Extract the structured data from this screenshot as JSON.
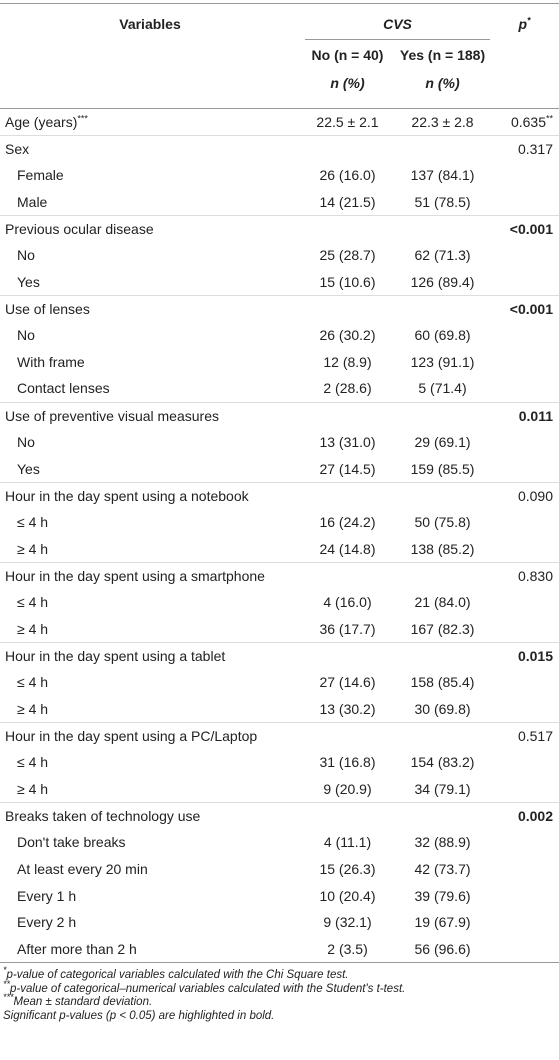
{
  "table": {
    "header": {
      "variables": "Variables",
      "group": "CVS",
      "p": "p",
      "p_note": "*",
      "no": "No (n = 40)",
      "yes": "Yes (n = 188)",
      "no_unit": "n (%)",
      "yes_unit": "n (%)"
    },
    "groups": [
      {
        "label": "Age (years)",
        "label_note": "***",
        "no": "22.5 ± 2.1",
        "yes": "22.3 ± 2.8",
        "p": "0.635",
        "p_note": "**",
        "significant": false,
        "rows": []
      },
      {
        "label": "Sex",
        "p": "0.317",
        "significant": false,
        "rows": [
          {
            "label": "Female",
            "no": "26 (16.0)",
            "yes": "137 (84.1)"
          },
          {
            "label": "Male",
            "no": "14 (21.5)",
            "yes": "51 (78.5)"
          }
        ]
      },
      {
        "label": "Previous ocular disease",
        "p": "<0.001",
        "significant": true,
        "rows": [
          {
            "label": "No",
            "no": "25 (28.7)",
            "yes": "62 (71.3)"
          },
          {
            "label": "Yes",
            "no": "15 (10.6)",
            "yes": "126 (89.4)"
          }
        ]
      },
      {
        "label": "Use of lenses",
        "p": "<0.001",
        "significant": true,
        "rows": [
          {
            "label": "No",
            "no": "26 (30.2)",
            "yes": "60 (69.8)"
          },
          {
            "label": "With frame",
            "no": "12 (8.9)",
            "yes": "123 (91.1)"
          },
          {
            "label": "Contact lenses",
            "no": "2 (28.6)",
            "yes": "5 (71.4)"
          }
        ]
      },
      {
        "label": "Use of preventive visual measures",
        "p": "0.011",
        "significant": true,
        "rows": [
          {
            "label": "No",
            "no": "13 (31.0)",
            "yes": "29 (69.1)"
          },
          {
            "label": "Yes",
            "no": "27 (14.5)",
            "yes": "159 (85.5)"
          }
        ]
      },
      {
        "label": "Hour in the day spent using a notebook",
        "p": "0.090",
        "significant": false,
        "rows": [
          {
            "label": "≤ 4 h",
            "no": "16 (24.2)",
            "yes": "50 (75.8)"
          },
          {
            "label": "≥ 4 h",
            "no": "24 (14.8)",
            "yes": "138 (85.2)"
          }
        ]
      },
      {
        "label": "Hour in the day spent using a smartphone",
        "p": "0.830",
        "significant": false,
        "rows": [
          {
            "label": "≤ 4 h",
            "no": "4 (16.0)",
            "yes": "21 (84.0)"
          },
          {
            "label": "≥ 4 h",
            "no": "36 (17.7)",
            "yes": "167 (82.3)"
          }
        ]
      },
      {
        "label": "Hour in the day spent using a tablet",
        "p": "0.015",
        "significant": true,
        "rows": [
          {
            "label": "≤ 4 h",
            "no": "27 (14.6)",
            "yes": "158 (85.4)"
          },
          {
            "label": "≥ 4 h",
            "no": "13 (30.2)",
            "yes": "30 (69.8)"
          }
        ]
      },
      {
        "label": "Hour in the day spent using a PC/Laptop",
        "p": "0.517",
        "significant": false,
        "rows": [
          {
            "label": "≤ 4 h",
            "no": "31 (16.8)",
            "yes": "154 (83.2)"
          },
          {
            "label": "≥ 4 h",
            "no": "9 (20.9)",
            "yes": "34 (79.1)"
          }
        ]
      },
      {
        "label": "Breaks taken of technology use",
        "p": "0.002",
        "significant": true,
        "rows": [
          {
            "label": "Don't take breaks",
            "no": "4 (11.1)",
            "yes": "32 (88.9)"
          },
          {
            "label": "At least every 20 min",
            "no": "15 (26.3)",
            "yes": "42 (73.7)"
          },
          {
            "label": "Every 1 h",
            "no": "10 (20.4)",
            "yes": "39 (79.6)"
          },
          {
            "label": "Every 2 h",
            "no": "9 (32.1)",
            "yes": "19 (67.9)"
          },
          {
            "label": "After more than 2 h",
            "no": "2 (3.5)",
            "yes": "56 (96.6)"
          }
        ]
      }
    ]
  },
  "footnotes": [
    {
      "marker": "*",
      "text": "p-value of categorical variables calculated with the Chi Square test."
    },
    {
      "marker": "**",
      "text": "p-value of categorical–numerical variables calculated with the Student's t-test."
    },
    {
      "marker": "***",
      "text": "Mean ± standard deviation."
    },
    {
      "text": "Significant p-values (p < 0.05) are highlighted in bold."
    }
  ]
}
